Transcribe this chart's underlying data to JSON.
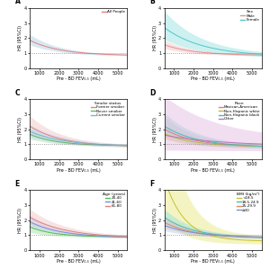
{
  "x_label": "Pre - BD FEV₀.₅ (mL)",
  "y_label": "HR (95%CI)",
  "ref_line": 1.0,
  "panel_A": {
    "legend": [
      "All People"
    ],
    "colors": [
      "#e08080"
    ],
    "ci_colors": [
      "#aacce0"
    ]
  },
  "panel_B": {
    "legend_title": "Sex",
    "legend": [
      "Male",
      "Female"
    ],
    "colors": [
      "#e09090",
      "#50c8c8"
    ],
    "ci_colors": [
      "#f0c0c0",
      "#90dede"
    ]
  },
  "panel_C": {
    "legend_title": "Smoke status",
    "legend": [
      "Former smoker",
      "Never smoker",
      "Current smoker"
    ],
    "colors": [
      "#e08080",
      "#60b860",
      "#70b8d8"
    ],
    "ci_colors": [
      "#f0c0c0",
      "#b0d8b0",
      "#b8d8f0"
    ]
  },
  "panel_D": {
    "legend_title": "Race",
    "legend": [
      "Mexican-American",
      "Non-Hispanic white",
      "Non-Hispanic black",
      "Other"
    ],
    "colors": [
      "#e07890",
      "#c0b840",
      "#40c0b8",
      "#c070c0"
    ],
    "ci_colors": [
      "#f0b8c8",
      "#e0d870",
      "#90e0d8",
      "#e0b8e0"
    ]
  },
  "panel_E": {
    "legend_title": "Age (years)",
    "legend": [
      "20-40",
      "41-60",
      "61-80"
    ],
    "colors": [
      "#50c050",
      "#7090e0",
      "#e08080"
    ],
    "ci_colors": [
      "#a0e0a0",
      "#b8cef8",
      "#f0c0c0"
    ]
  },
  "panel_F": {
    "legend_title": "BMI (kg/m²)",
    "legend": [
      "<18.5",
      "18.5-24.9",
      "25-29.9",
      "≥30"
    ],
    "colors": [
      "#c8c030",
      "#40c0c0",
      "#e08860",
      "#7890d0"
    ],
    "ci_colors": [
      "#e8e878",
      "#90e0e0",
      "#f0c8a8",
      "#b8c8e8"
    ]
  }
}
